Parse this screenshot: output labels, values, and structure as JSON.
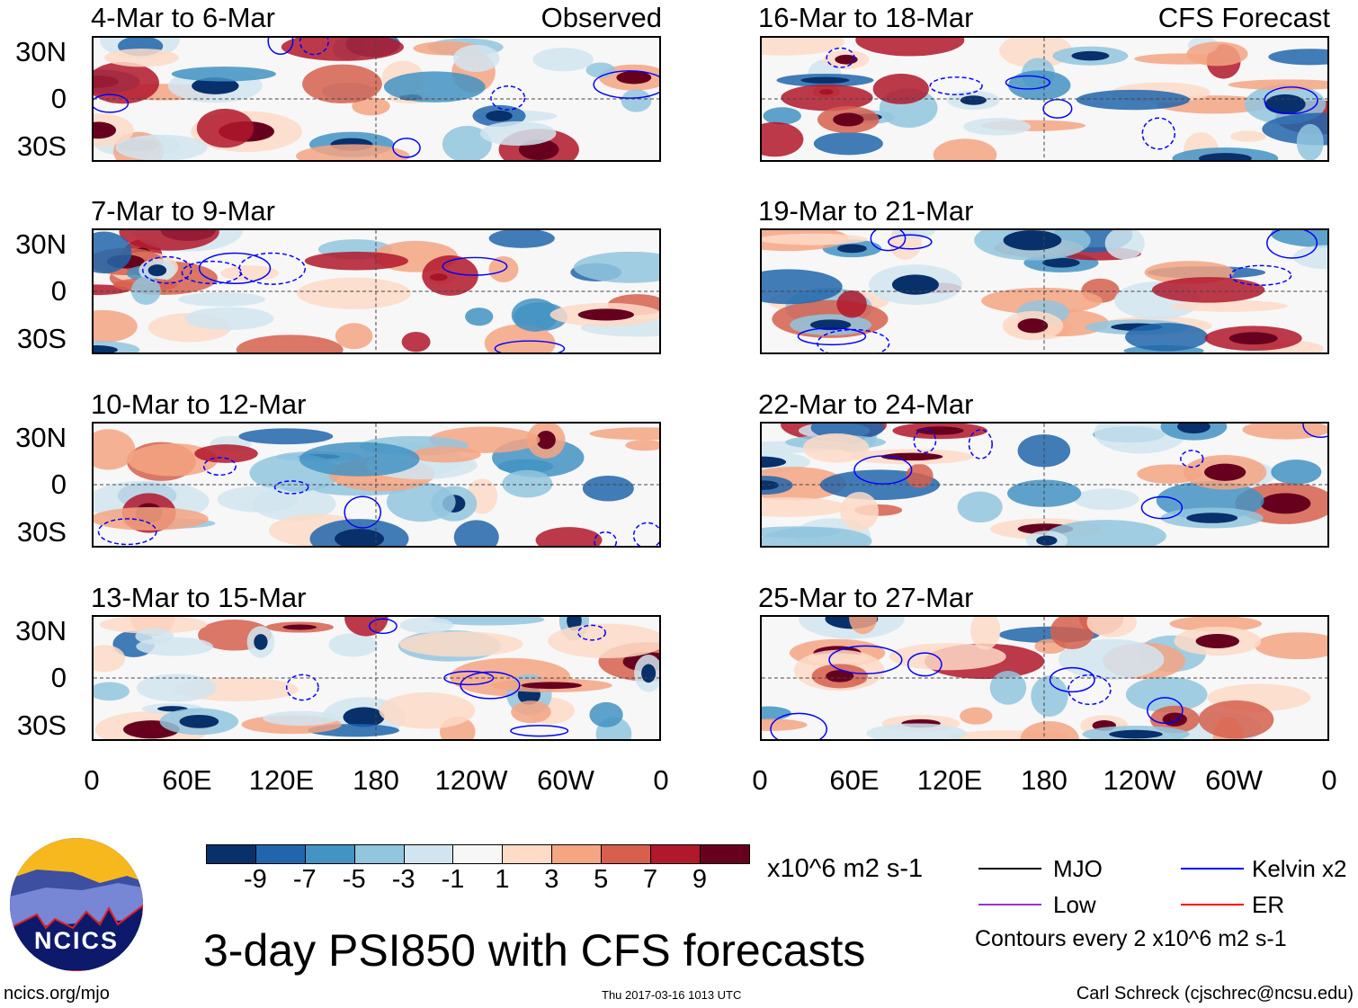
{
  "header": {
    "left_label": "Observed",
    "right_label": "CFS Forecast"
  },
  "observed_panels": [
    {
      "title": "4-Mar to 6-Mar"
    },
    {
      "title": "7-Mar to 9-Mar"
    },
    {
      "title": "10-Mar to 12-Mar"
    },
    {
      "title": "13-Mar to 15-Mar"
    }
  ],
  "forecast_panels": [
    {
      "title": "16-Mar to 18-Mar"
    },
    {
      "title": "19-Mar to 21-Mar"
    },
    {
      "title": "22-Mar to 24-Mar"
    },
    {
      "title": "25-Mar to 27-Mar"
    }
  ],
  "lat_labels": [
    "30N",
    "0",
    "30S"
  ],
  "lon_labels": [
    "0",
    "60E",
    "120E",
    "180",
    "120W",
    "60W",
    "0"
  ],
  "colorbar": {
    "colors": [
      "#08306b",
      "#2166ac",
      "#4393c3",
      "#92c5de",
      "#d1e5f0",
      "#f7f7f7",
      "#fddbc7",
      "#f4a582",
      "#d6604d",
      "#b2182b",
      "#67001f"
    ],
    "labels": [
      "-9",
      "-7",
      "-5",
      "-3",
      "-1",
      "1",
      "3",
      "5",
      "7",
      "9"
    ],
    "units": "x10^6 m2 s-1"
  },
  "legend": {
    "items": [
      {
        "label": "MJO",
        "color": "#000000"
      },
      {
        "label": "Kelvin x2",
        "color": "#0000ff"
      },
      {
        "label": "Low",
        "color": "#9933cc"
      },
      {
        "label": "ER",
        "color": "#ff0000"
      }
    ],
    "contour_note": "Contours every 2 x10^6 m2 s-1"
  },
  "title": "3-day PSI850 with CFS forecasts",
  "logo": {
    "text": "NCICS"
  },
  "footer": {
    "url": "ncics.org/mjo",
    "timestamp": "Thu 2017-03-16 1013 UTC",
    "author": "Carl Schreck (cjschrec@ncsu.edu)"
  }
}
